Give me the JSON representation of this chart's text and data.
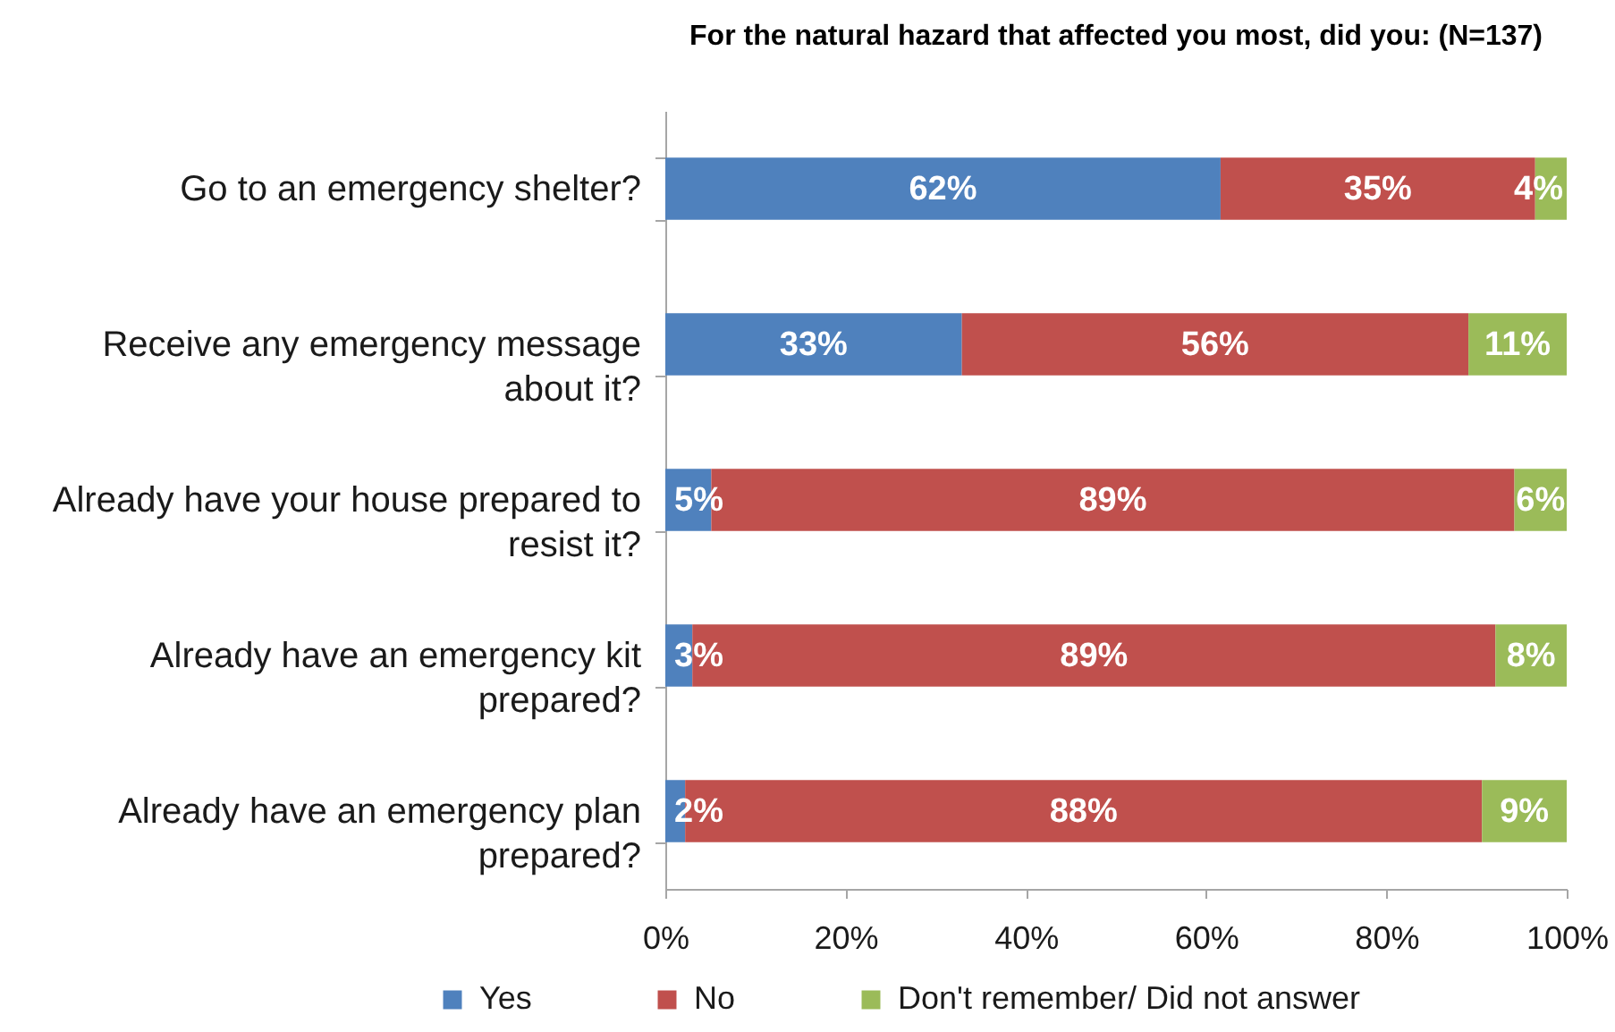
{
  "chart_data": {
    "type": "bar",
    "orientation": "horizontal",
    "stacked": true,
    "title": "For the natural hazard that affected you most, did you: (N=137)",
    "categories": [
      "Go to an emergency shelter?",
      "Receive any emergency message about it?",
      "Already have your house prepared to resist it?",
      "Already have an emergency kit prepared?",
      "Already have an emergency plan prepared?"
    ],
    "series": [
      {
        "name": "Yes",
        "color": "#4f81bd",
        "values": [
          61.6,
          32.9,
          5.1,
          3.0,
          2.2
        ],
        "value_labels": [
          "62%",
          "33%",
          "5%",
          "3%",
          "2%"
        ]
      },
      {
        "name": "No",
        "color": "#c0504d",
        "values": [
          34.9,
          56.2,
          89.1,
          89.1,
          88.4
        ],
        "value_labels": [
          "35%",
          "56%",
          "89%",
          "89%",
          "88%"
        ]
      },
      {
        "name": "Don't remember/ Did not answer",
        "color": "#9bbb59",
        "values": [
          3.5,
          10.9,
          5.8,
          7.9,
          9.4
        ],
        "value_labels": [
          "4%",
          "11%",
          "6%",
          "8%",
          "9%"
        ]
      }
    ],
    "xlim": [
      0,
      100
    ],
    "xticks": [
      {
        "value": 0,
        "label": "0%"
      },
      {
        "value": 20,
        "label": "20%"
      },
      {
        "value": 40,
        "label": "40%"
      },
      {
        "value": 60,
        "label": "60%"
      },
      {
        "value": 80,
        "label": "80%"
      },
      {
        "value": 100,
        "label": "100%"
      }
    ],
    "legend": "bottom"
  }
}
